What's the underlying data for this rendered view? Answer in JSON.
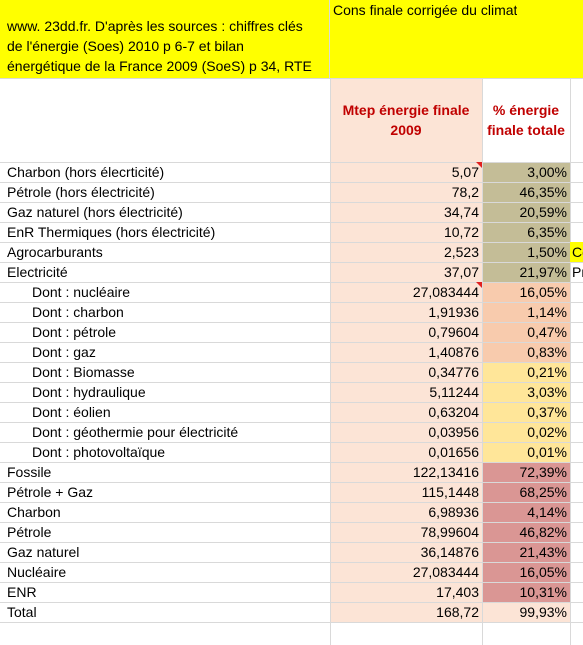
{
  "header": {
    "source_line1": "www. 23dd.fr. D'après les sources : chiffres clés",
    "source_line2": "de l'énergie (Soes) 2010 p 6-7 et bilan",
    "source_line3": "énergétique de la France 2009 (SoeS) p 34, RTE",
    "title": "Cons finale corrigée du climat",
    "col_mtep_line1": "Mtep énergie finale",
    "col_mtep_line2": "2009",
    "col_pct_line1": "% énergie",
    "col_pct_line2": "finale totale"
  },
  "side_fragments": {
    "agro": "Co",
    "elec": "Pr"
  },
  "rows": [
    {
      "label": "Charbon (hors élecrticité)",
      "mtep": "5,07",
      "pct": "3,00%"
    },
    {
      "label": "Pétrole (hors électricité)",
      "mtep": "78,2",
      "pct": "46,35%"
    },
    {
      "label": "Gaz naturel (hors électricité)",
      "mtep": "34,74",
      "pct": "20,59%"
    },
    {
      "label": "EnR Thermiques (hors électricité)",
      "mtep": "10,72",
      "pct": "6,35%"
    },
    {
      "label": "Agrocarburants",
      "mtep": "2,523",
      "pct": "1,50%"
    },
    {
      "label": "Electricité",
      "mtep": "37,07",
      "pct": "21,97%"
    },
    {
      "label": "Dont :  nucléaire",
      "mtep": "27,083444",
      "pct": "16,05%"
    },
    {
      "label": "Dont : charbon",
      "mtep": "1,91936",
      "pct": "1,14%"
    },
    {
      "label": "Dont : pétrole",
      "mtep": "0,79604",
      "pct": "0,47%"
    },
    {
      "label": "Dont : gaz",
      "mtep": "1,40876",
      "pct": "0,83%"
    },
    {
      "label": "Dont : Biomasse",
      "mtep": "0,34776",
      "pct": "0,21%"
    },
    {
      "label": "Dont : hydraulique",
      "mtep": "5,11244",
      "pct": "3,03%"
    },
    {
      "label": "Dont : éolien",
      "mtep": "0,63204",
      "pct": "0,37%"
    },
    {
      "label": "Dont : géothermie pour électricité",
      "mtep": "0,03956",
      "pct": "0,02%"
    },
    {
      "label": "Dont : photovoltaïque",
      "mtep": "0,01656",
      "pct": "0,01%"
    },
    {
      "label": "Fossile",
      "mtep": "122,13416",
      "pct": "72,39%"
    },
    {
      "label": "Pétrole + Gaz",
      "mtep": "115,1448",
      "pct": "68,25%"
    },
    {
      "label": "Charbon",
      "mtep": "6,98936",
      "pct": "4,14%"
    },
    {
      "label": "Pétrole",
      "mtep": "78,99604",
      "pct": "46,82%"
    },
    {
      "label": "Gaz naturel",
      "mtep": "36,14876",
      "pct": "21,43%"
    },
    {
      "label": "Nucléaire",
      "mtep": "27,083444",
      "pct": "16,05%"
    },
    {
      "label": "ENR",
      "mtep": "17,403",
      "pct": "10,31%"
    },
    {
      "label": "Total",
      "mtep": "168,72",
      "pct": "99,93%"
    }
  ],
  "colors": {
    "yellow": "#ffff00",
    "mtep_fill": "#fce4d6",
    "pct_tan": "#c4bd97",
    "pct_orange": "#f8cbad",
    "pct_light_yellow": "#ffe699",
    "pct_rose": "#da9694"
  }
}
